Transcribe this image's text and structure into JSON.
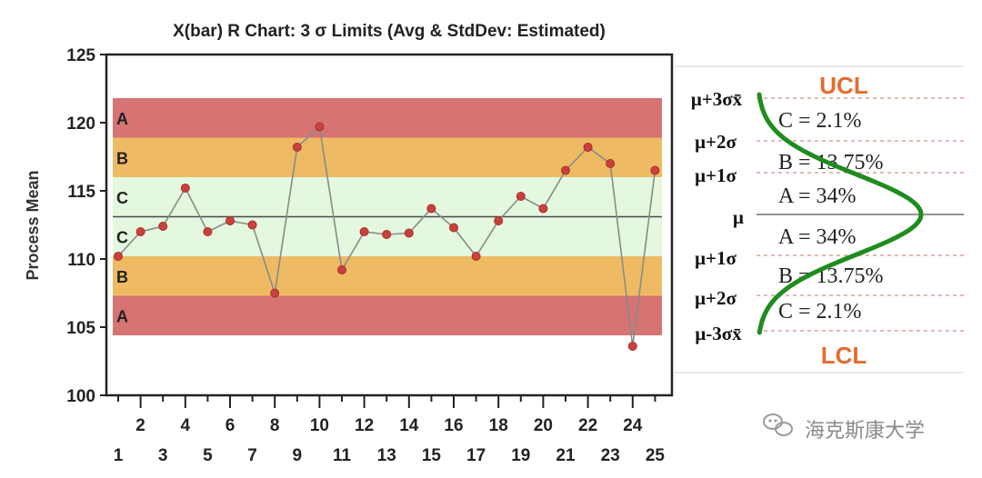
{
  "chart_data": {
    "type": "line",
    "title": "X(bar) R Chart:  3 σ Limits (Avg & StdDev: Estimated)",
    "ylabel": "Process Mean",
    "xlabel": "",
    "ylim": [
      100,
      125
    ],
    "y_ticks": [
      100,
      105,
      110,
      115,
      120,
      125
    ],
    "x": [
      1,
      2,
      3,
      4,
      5,
      6,
      7,
      8,
      9,
      10,
      11,
      12,
      13,
      14,
      15,
      16,
      17,
      18,
      19,
      20,
      21,
      22,
      23,
      24,
      25
    ],
    "x_labels_top": [
      "2",
      "4",
      "6",
      "8",
      "10",
      "12",
      "14",
      "16",
      "18",
      "20",
      "22",
      "24"
    ],
    "x_labels_bottom": [
      "1",
      "3",
      "5",
      "7",
      "9",
      "11",
      "13",
      "15",
      "17",
      "19",
      "21",
      "23",
      "25"
    ],
    "values": [
      110.2,
      112.0,
      112.4,
      115.2,
      112.0,
      112.8,
      112.5,
      107.5,
      118.2,
      119.7,
      109.2,
      112.0,
      111.8,
      111.9,
      113.7,
      112.3,
      110.2,
      112.8,
      114.6,
      113.7,
      116.5,
      118.2,
      117.0,
      103.6,
      116.5
    ],
    "center_line": 113.1,
    "zones": [
      {
        "name": "A",
        "from": 118.9,
        "to": 121.8,
        "color": "#d67373"
      },
      {
        "name": "B",
        "from": 116.0,
        "to": 118.9,
        "color": "#eebb64"
      },
      {
        "name": "C",
        "from": 113.1,
        "to": 116.0,
        "color": "#e4f7df"
      },
      {
        "name": "C",
        "from": 110.2,
        "to": 113.1,
        "color": "#e4f7df"
      },
      {
        "name": "B",
        "from": 107.3,
        "to": 110.2,
        "color": "#eebb64"
      },
      {
        "name": "A",
        "from": 104.4,
        "to": 107.3,
        "color": "#d67373"
      }
    ],
    "line_color": "#8a8a8a",
    "marker_color": "#c9403c"
  },
  "legend": {
    "ucl": "UCL",
    "lcl": "LCL",
    "levels": [
      "μ+3σx̄",
      "μ+2σ",
      "μ+1σ",
      "μ",
      "μ+1σ",
      "μ+2σ",
      "μ-3σx̄"
    ],
    "zone_labels": [
      "C =   2.1%",
      "B = 13.75%",
      "A = 34%",
      "A = 34%",
      "B = 13.75%",
      "C =   2.1%"
    ],
    "curve_color": "#1e8c1e",
    "limit_color": "#e46c2e"
  },
  "watermark": {
    "text": "海克斯康大学"
  }
}
